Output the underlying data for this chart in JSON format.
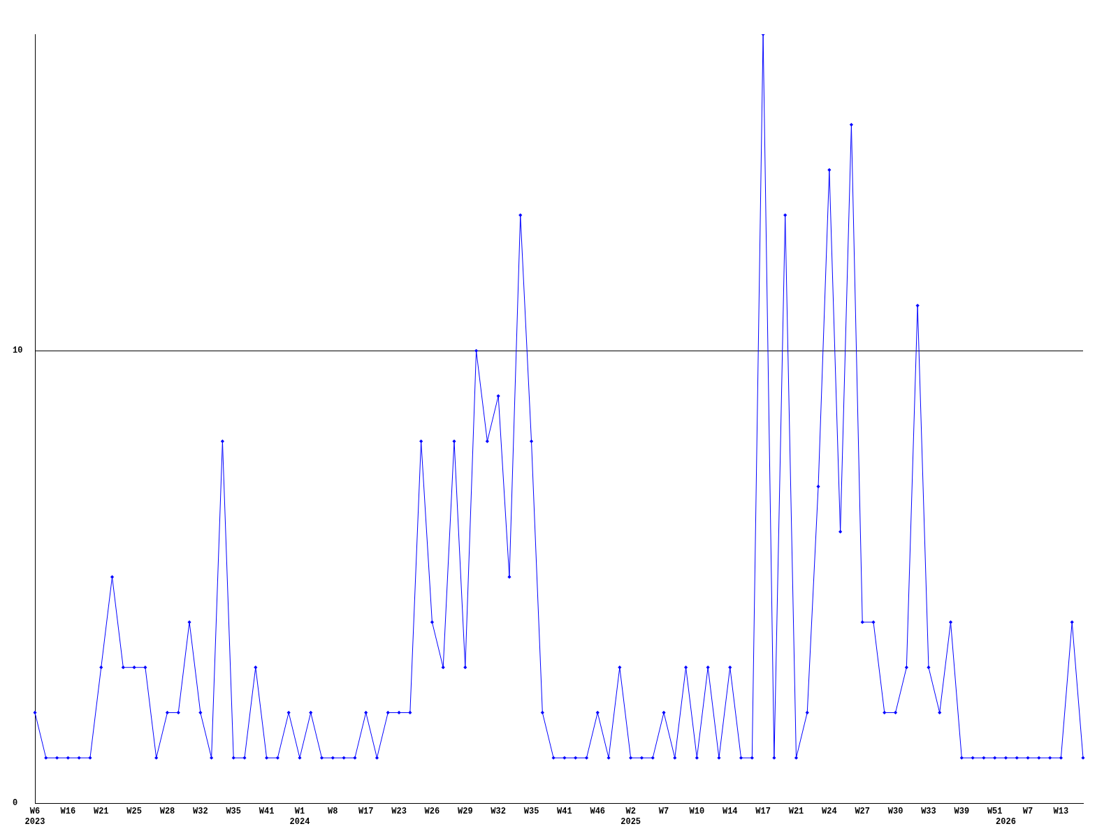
{
  "chart_data": {
    "type": "line",
    "categories": [
      "W6\n2023",
      null,
      null,
      "W16",
      null,
      null,
      "W21",
      null,
      null,
      "W25",
      null,
      null,
      "W28",
      null,
      null,
      "W32",
      null,
      null,
      "W35",
      null,
      null,
      "W41",
      null,
      null,
      "W1\n2024",
      null,
      null,
      "W8",
      null,
      null,
      "W17",
      null,
      null,
      "W23",
      null,
      null,
      "W26",
      null,
      null,
      "W29",
      null,
      null,
      "W32",
      null,
      null,
      "W35",
      null,
      null,
      "W41",
      null,
      null,
      "W46",
      null,
      null,
      "W2\n2025",
      null,
      null,
      "W7",
      null,
      null,
      "W10",
      null,
      null,
      "W14",
      null,
      null,
      "W17",
      null,
      null,
      "W21",
      null,
      null,
      "W24",
      null,
      null,
      "W27",
      null,
      null,
      "W30",
      null,
      null,
      "W33",
      null,
      null,
      "W39",
      null,
      null,
      "W51",
      "\n2026",
      null,
      "W7",
      null,
      null,
      "W13",
      null,
      null
    ],
    "values": [
      2,
      1,
      1,
      1,
      1,
      1,
      3,
      5,
      3,
      3,
      3,
      1,
      2,
      2,
      4,
      2,
      1,
      8,
      1,
      1,
      3,
      1,
      1,
      2,
      1,
      2,
      1,
      1,
      1,
      1,
      2,
      1,
      2,
      2,
      2,
      8,
      4,
      3,
      8,
      3,
      10,
      8,
      9,
      5,
      13,
      8,
      2,
      1,
      1,
      1,
      1,
      2,
      1,
      3,
      1,
      1,
      1,
      2,
      1,
      3,
      1,
      3,
      1,
      3,
      1,
      1,
      17,
      1,
      13,
      1,
      2,
      7,
      14,
      6,
      15,
      4,
      4,
      2,
      2,
      3,
      11,
      3,
      2,
      4,
      1,
      1,
      1,
      1,
      1,
      1,
      1,
      1,
      1,
      1,
      4,
      1
    ],
    "color": "#0000ff",
    "ylim": [
      0,
      17
    ],
    "yticks": [
      0,
      10
    ],
    "grid": "y",
    "marker": "diamond"
  }
}
